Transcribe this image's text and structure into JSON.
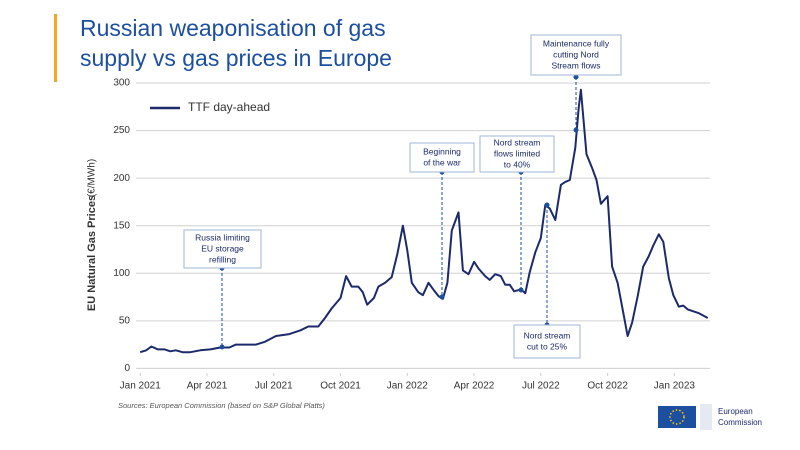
{
  "chart_data": {
    "type": "line",
    "title": [
      "Russian weaponisation of gas",
      "supply vs gas prices in Europe"
    ],
    "y_label": "EU Natural Gas Prices",
    "y_unit": "(€/MWh)",
    "source": "Sources: European Commission (based on S&P Global Platts)",
    "logo_text": [
      "European",
      "Commission"
    ],
    "x": [
      0,
      0.27,
      0.5,
      0.8,
      1.1,
      1.35,
      1.6,
      1.9,
      2.25,
      2.7,
      3.15,
      3.6,
      4,
      4.3,
      4.7,
      5.2,
      5.6,
      6.1,
      6.7,
      7.2,
      7.55,
      8,
      8.3,
      8.6,
      9,
      9.25,
      9.5,
      9.8,
      10,
      10.2,
      10.5,
      10.7,
      11,
      11.3,
      11.55,
      11.8,
      12,
      12.2,
      12.5,
      12.7,
      12.95,
      13.2,
      13.4,
      13.6,
      13.8,
      14,
      14.3,
      14.5,
      14.75,
      15,
      15.2,
      15.5,
      15.7,
      15.95,
      16.2,
      16.4,
      16.6,
      16.8,
      17.1,
      17.3,
      17.5,
      17.75,
      18,
      18.2,
      18.4,
      18.65,
      18.9,
      19.1,
      19.3,
      19.55,
      19.7,
      19.8,
      20.05,
      20.3,
      20.5,
      20.7,
      21,
      21.2,
      21.45,
      21.7,
      21.9,
      22.1,
      22.35,
      22.6,
      22.85,
      23.05,
      23.3,
      23.5,
      23.75,
      23.95,
      24.2,
      24.4,
      24.6,
      25.1,
      25.5
    ],
    "series": [
      {
        "name": "TTF day-ahead",
        "color": "#1c2a6b",
        "values": [
          17,
          19,
          23,
          20,
          20,
          18,
          19,
          17,
          17,
          19,
          20,
          22,
          22,
          25,
          25,
          25,
          28,
          34,
          36,
          40,
          44,
          44,
          53,
          63,
          74,
          97,
          86,
          86,
          80,
          67,
          74,
          86,
          90,
          96,
          120,
          150,
          124,
          90,
          80,
          77,
          90,
          82,
          76,
          73,
          90,
          145,
          164,
          103,
          99,
          112,
          105,
          97,
          93,
          99,
          97,
          88,
          88,
          81,
          83,
          79,
          101,
          122,
          137,
          172,
          168,
          156,
          193,
          196,
          198,
          232,
          274,
          293,
          225,
          211,
          198,
          173,
          181,
          107,
          90,
          59,
          34,
          48,
          76,
          107,
          118,
          129,
          141,
          133,
          95,
          77,
          65,
          66,
          62,
          58,
          53
        ]
      }
    ],
    "xlim": [
      -0.1,
      25.6
    ],
    "xticks": [
      {
        "value": 0,
        "label": "Jan 2021"
      },
      {
        "value": 3,
        "label": "Apr 2021"
      },
      {
        "value": 6,
        "label": "Jul 2021"
      },
      {
        "value": 9,
        "label": "Oct 2021"
      },
      {
        "value": 12,
        "label": "Jan 2022"
      },
      {
        "value": 15,
        "label": "Apr 2022"
      },
      {
        "value": 18,
        "label": "Jul 2022"
      },
      {
        "value": 21,
        "label": "Oct 2022"
      },
      {
        "value": 24,
        "label": "Jan 2023"
      }
    ],
    "ylim": [
      -8,
      300
    ],
    "yticks": [
      0,
      50,
      100,
      150,
      200,
      250,
      300
    ],
    "grid": true,
    "legend": "top-left",
    "annotations": [
      {
        "text": [
          "Russia limiting",
          "EU storage",
          "refilling"
        ]
      },
      {
        "text": [
          "Beginning",
          "of the war"
        ]
      },
      {
        "text": [
          "Nord stream",
          "flows limited",
          "to 40%"
        ]
      },
      {
        "text": [
          "Maintenance fully",
          "cutting Nord",
          "Stream flows"
        ]
      },
      {
        "text": [
          "Nord stream",
          "cut to 25%"
        ]
      }
    ]
  }
}
